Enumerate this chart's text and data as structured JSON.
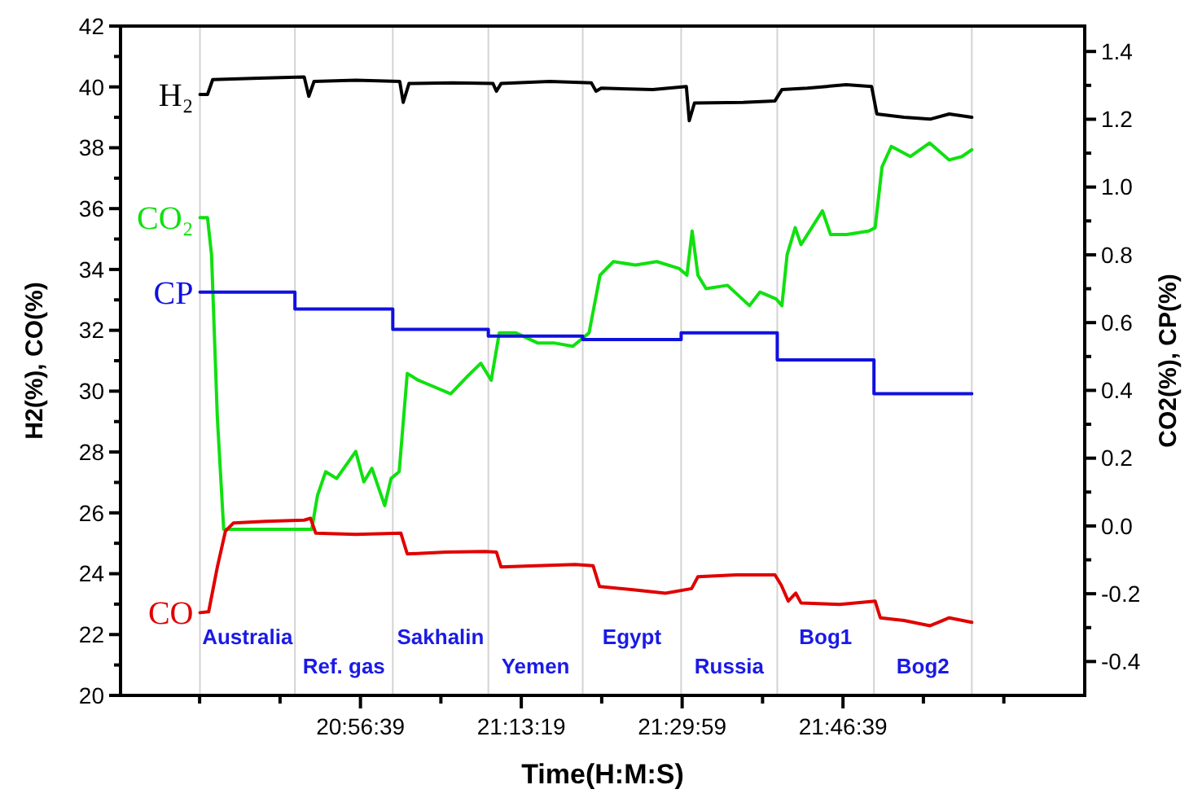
{
  "chart_data": {
    "type": "line",
    "xlabel": "Time(H:M:S)",
    "ylabel": "H2(%), CO(%)",
    "y2label": "CO2(%), CP(%)",
    "xlim": [
      20.5298,
      22.195
    ],
    "xticks": [
      {
        "value": 20.66639,
        "label": null
      },
      {
        "value": 20.80528,
        "label": null
      },
      {
        "value": 20.94417,
        "label": "20:56:39"
      },
      {
        "value": 21.08306,
        "label": null
      },
      {
        "value": 21.22194,
        "label": "21:13:19"
      },
      {
        "value": 21.36083,
        "label": null
      },
      {
        "value": 21.49972,
        "label": "21:29:59"
      },
      {
        "value": 21.63861,
        "label": null
      },
      {
        "value": 21.7775,
        "label": "21:46:39"
      },
      {
        "value": 21.91639,
        "label": null
      },
      {
        "value": 22.05528,
        "label": null
      }
    ],
    "ylim": [
      20,
      42
    ],
    "yticks": [
      20,
      {
        "value": 21,
        "label": null
      },
      22,
      {
        "value": 23,
        "label": null
      },
      24,
      {
        "value": 25,
        "label": null
      },
      26,
      {
        "value": 27,
        "label": null
      },
      28,
      {
        "value": 29,
        "label": null
      },
      30,
      {
        "value": 31,
        "label": null
      },
      32,
      {
        "value": 33,
        "label": null
      },
      34,
      {
        "value": 35,
        "label": null
      },
      36,
      {
        "value": 37,
        "label": null
      },
      38,
      {
        "value": 39,
        "label": null
      },
      40,
      {
        "value": 41,
        "label": null
      },
      42
    ],
    "y2lim": [
      -0.5,
      1.475
    ],
    "y2ticks": [
      -0.4,
      {
        "value": -0.3,
        "label": null
      },
      -0.2,
      {
        "value": -0.1,
        "label": null
      },
      {
        "value": 0,
        "label": "0.0"
      },
      {
        "value": 0.1,
        "label": null
      },
      0.2,
      {
        "value": 0.3,
        "label": null
      },
      0.4,
      {
        "value": 0.5,
        "label": null
      },
      0.6,
      {
        "value": 0.7,
        "label": null
      },
      0.8,
      {
        "value": 0.9,
        "label": null
      },
      {
        "value": 1,
        "label": "1.0"
      },
      {
        "value": 1.1,
        "label": null
      },
      1.2,
      {
        "value": 1.3,
        "label": null
      },
      1.4
    ],
    "series": [
      {
        "name": "H₂",
        "color": "#000000",
        "x": [
          20.667,
          20.68,
          20.689,
          20.769,
          20.847,
          20.855,
          20.864,
          20.936,
          21.012,
          21.018,
          21.028,
          21.103,
          21.173,
          21.179,
          21.187,
          21.271,
          21.343,
          21.351,
          21.36,
          21.449,
          21.507,
          21.512,
          21.521,
          21.605,
          21.66,
          21.672,
          21.716,
          21.783,
          21.827,
          21.836,
          21.883,
          21.928,
          21.961,
          22.0
        ],
        "values": [
          39.75,
          39.75,
          40.24,
          40.29,
          40.33,
          39.69,
          40.18,
          40.22,
          40.18,
          39.49,
          40.11,
          40.13,
          40.11,
          39.86,
          40.11,
          40.18,
          40.13,
          39.86,
          39.96,
          39.91,
          40.01,
          38.89,
          39.47,
          39.49,
          39.54,
          39.91,
          39.96,
          40.07,
          40.01,
          39.11,
          39.0,
          38.94,
          39.11,
          39.0
        ]
      },
      {
        "name": "CO₂",
        "color": "#10e010",
        "axis": "y2",
        "x": [
          20.667,
          20.68,
          20.687,
          20.697,
          20.708,
          20.86,
          20.87,
          20.884,
          20.903,
          20.936,
          20.95,
          20.964,
          20.986,
          20.997,
          21.011,
          21.025,
          21.044,
          21.072,
          21.1,
          21.128,
          21.152,
          21.17,
          21.184,
          21.212,
          21.25,
          21.278,
          21.311,
          21.339,
          21.358,
          21.381,
          21.419,
          21.456,
          21.494,
          21.508,
          21.517,
          21.527,
          21.541,
          21.578,
          21.616,
          21.634,
          21.662,
          21.672,
          21.681,
          21.695,
          21.705,
          21.742,
          21.756,
          21.784,
          21.822,
          21.833,
          21.845,
          21.861,
          21.894,
          21.927,
          21.961,
          21.983,
          22.0
        ],
        "values": [
          0.91,
          0.91,
          0.8,
          0.32,
          -0.01,
          -0.01,
          0.09,
          0.16,
          0.14,
          0.22,
          0.13,
          0.17,
          0.06,
          0.14,
          0.16,
          0.45,
          0.43,
          0.41,
          0.39,
          0.44,
          0.48,
          0.43,
          0.57,
          0.57,
          0.54,
          0.54,
          0.53,
          0.57,
          0.74,
          0.78,
          0.77,
          0.78,
          0.76,
          0.74,
          0.87,
          0.74,
          0.7,
          0.71,
          0.65,
          0.69,
          0.67,
          0.65,
          0.8,
          0.88,
          0.83,
          0.93,
          0.86,
          0.86,
          0.87,
          0.88,
          1.06,
          1.12,
          1.09,
          1.13,
          1.08,
          1.09,
          1.11
        ]
      },
      {
        "name": "CP",
        "color": "#1010e0",
        "axis": "y2",
        "type": "step",
        "x": [
          20.667,
          20.831,
          21.0,
          21.165,
          21.328,
          21.498,
          21.664,
          21.831,
          22.0
        ],
        "values": [
          0.69,
          0.64,
          0.58,
          0.56,
          0.55,
          0.57,
          0.49,
          0.39,
          0.39
        ]
      },
      {
        "name": "CO",
        "color": "#e00000",
        "x": [
          20.667,
          20.682,
          20.697,
          20.711,
          20.725,
          20.78,
          20.847,
          20.858,
          20.867,
          20.936,
          21.014,
          21.025,
          21.092,
          21.159,
          21.179,
          21.187,
          21.248,
          21.315,
          21.346,
          21.357,
          21.415,
          21.471,
          21.516,
          21.527,
          21.593,
          21.66,
          21.671,
          21.683,
          21.696,
          21.705,
          21.772,
          21.833,
          21.842,
          21.883,
          21.928,
          21.961,
          22.0
        ],
        "values": [
          22.72,
          22.75,
          24.22,
          25.4,
          25.67,
          25.72,
          25.76,
          25.82,
          25.33,
          25.29,
          25.33,
          24.65,
          24.71,
          24.73,
          24.71,
          24.22,
          24.26,
          24.3,
          24.26,
          23.58,
          23.47,
          23.36,
          23.51,
          23.9,
          23.96,
          23.96,
          23.62,
          23.1,
          23.36,
          23.04,
          22.99,
          23.1,
          22.55,
          22.46,
          22.29,
          22.55,
          22.4
        ]
      }
    ],
    "ref_lines": [
      {
        "axis": "x",
        "value": 20.667,
        "label": null,
        "color": "#d3d3d3"
      },
      {
        "axis": "x",
        "value": 20.831,
        "label": null,
        "color": "#d3d3d3"
      },
      {
        "axis": "x",
        "value": 21.0,
        "label": null,
        "color": "#d3d3d3"
      },
      {
        "axis": "x",
        "value": 21.165,
        "label": null,
        "color": "#d3d3d3"
      },
      {
        "axis": "x",
        "value": 21.328,
        "label": null,
        "color": "#d3d3d3"
      },
      {
        "axis": "x",
        "value": 21.498,
        "label": null,
        "color": "#d3d3d3"
      },
      {
        "axis": "x",
        "value": 21.664,
        "label": null,
        "color": "#d3d3d3"
      },
      {
        "axis": "x",
        "value": 21.831,
        "label": null,
        "color": "#d3d3d3"
      },
      {
        "axis": "x",
        "value": 22.0,
        "label": null,
        "color": "#d3d3d3"
      }
    ],
    "annotations": [
      "Australia",
      "Ref. gas",
      "Sakhalin",
      "Yemen",
      "Egypt",
      "Russia",
      "Bog1",
      "Bog2"
    ]
  }
}
